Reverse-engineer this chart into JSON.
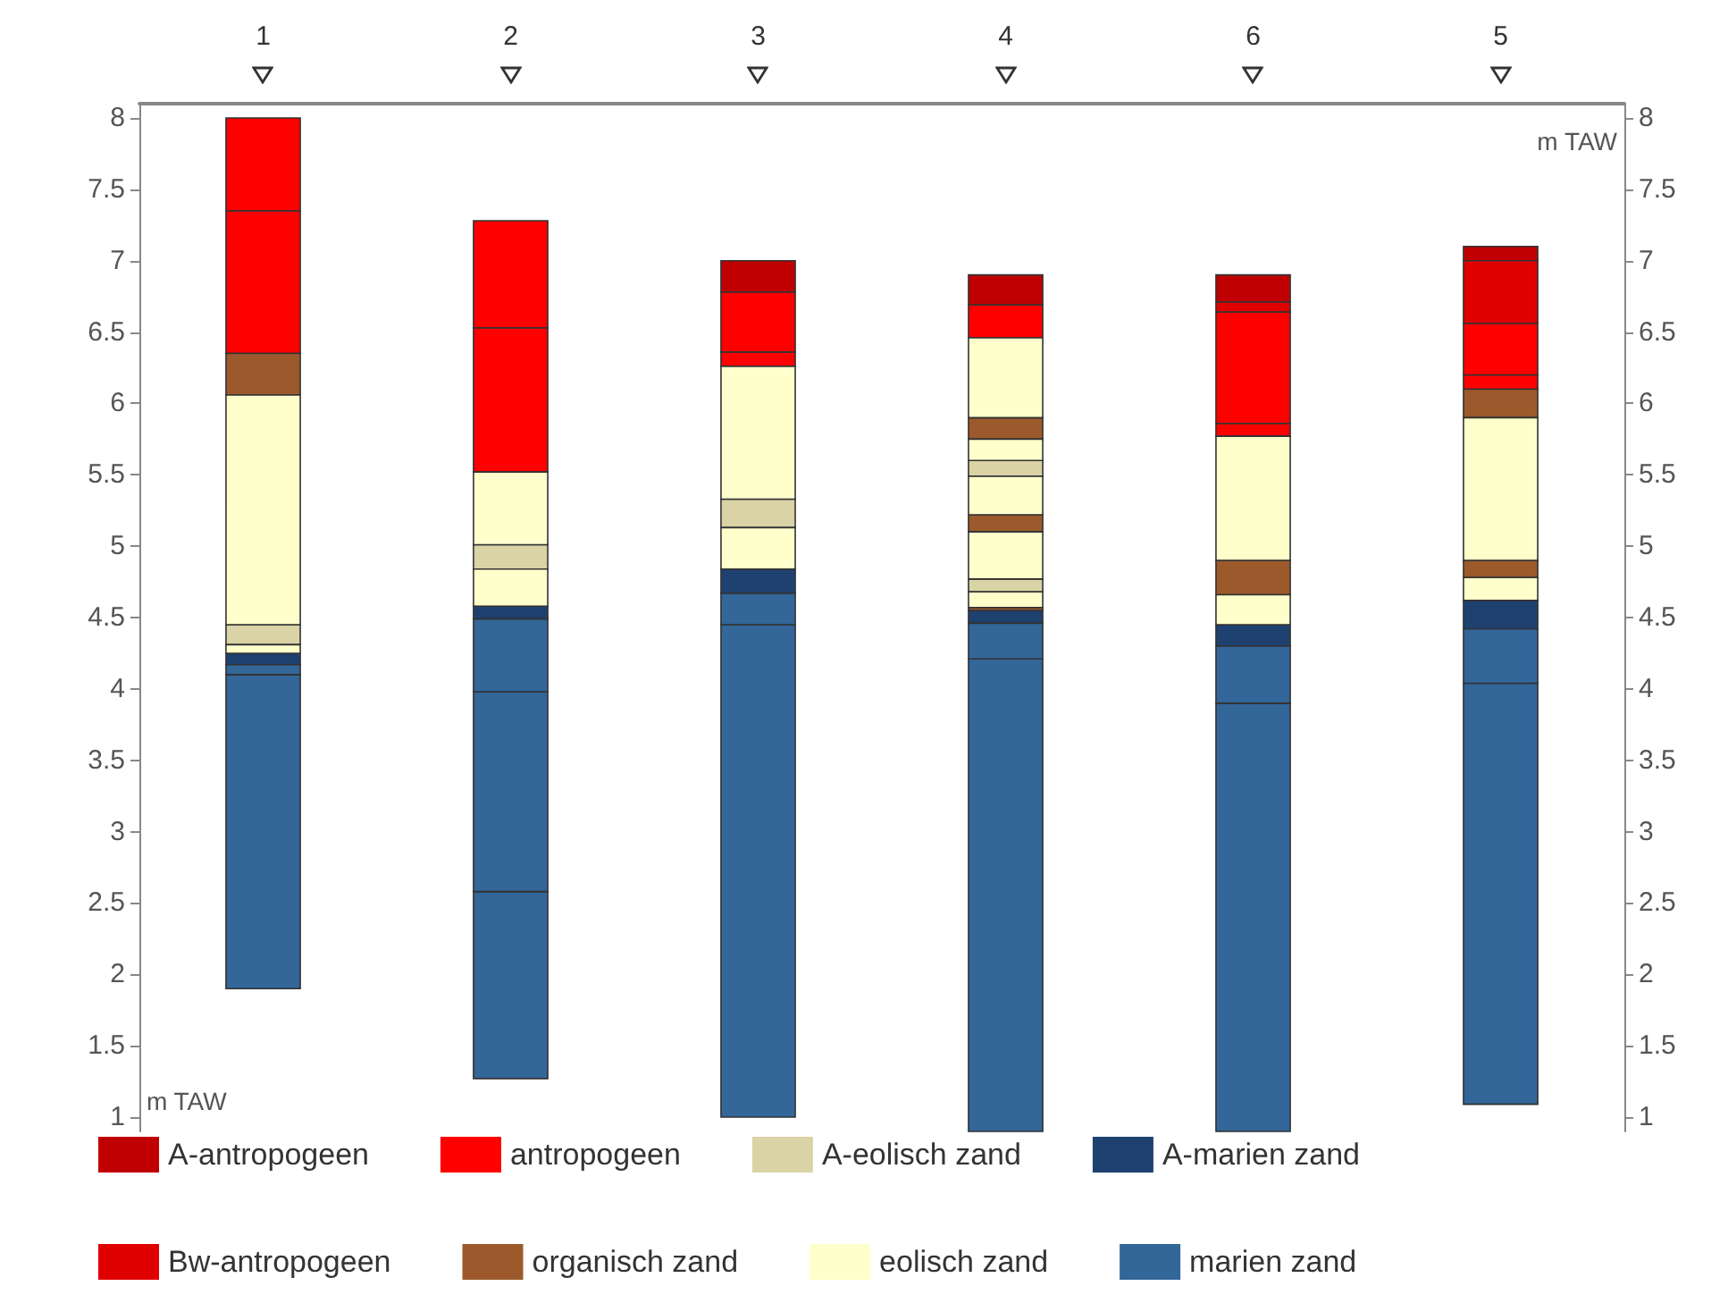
{
  "chart_data": {
    "type": "bar",
    "categories": [
      "1",
      "2",
      "3",
      "4",
      "6",
      "5"
    ],
    "series": [
      {
        "name": "A-antropogeen",
        "color": "#c00000",
        "base": [
          null,
          null,
          6.78,
          6.69,
          6.71,
          7.0
        ],
        "values": [
          null,
          null,
          0.22,
          0.21,
          0.19,
          0.1
        ]
      },
      {
        "name": "antropogeen",
        "color": "#ff0000",
        "base": [
          6.35,
          5.52,
          6.26,
          6.46,
          5.77,
          6.1
        ],
        "values": [
          1.0,
          1.01,
          0.1,
          0.23,
          0.09,
          0.1
        ]
      },
      {
        "name": "A-eolisch zand",
        "color": "#d9d3a6",
        "base": [
          4.31,
          4.84,
          5.13,
          4.68,
          null,
          null
        ],
        "values": [
          0.14,
          0.17,
          0.2,
          0.09,
          null,
          null
        ]
      },
      {
        "name": "A-marien zand",
        "color": "#1f4170",
        "base": [
          4.17,
          4.49,
          4.67,
          4.46,
          4.3,
          4.42
        ],
        "values": [
          0.08,
          0.09,
          0.17,
          0.09,
          0.15,
          0.2
        ]
      },
      {
        "name": "Bw-antropogeen",
        "color": "#e00000",
        "base": [
          null,
          null,
          null,
          null,
          6.64,
          6.56
        ],
        "values": [
          null,
          null,
          null,
          null,
          0.07,
          0.44
        ]
      },
      {
        "name": "organisch zand",
        "color": "#9c5a2c",
        "base": [
          6.06,
          null,
          null,
          4.55,
          4.66,
          4.78
        ],
        "values": [
          0.29,
          null,
          null,
          0.02,
          0.24,
          0.12
        ]
      },
      {
        "name": "eolisch zand",
        "color": "#ffffcc",
        "base": [
          4.25,
          4.58,
          4.84,
          4.57,
          4.45,
          4.62
        ],
        "values": [
          0.06,
          0.26,
          0.29,
          0.11,
          0.21,
          0.16
        ]
      },
      {
        "name": "marien zand",
        "color": "#336699",
        "base": [
          1.9,
          1.27,
          1.0,
          0.9,
          0.9,
          1.09
        ],
        "values": [
          2.2,
          1.31,
          3.45,
          3.31,
          3.0,
          2.95
        ]
      },
      {
        "color": "#ff0000",
        "base": [
          7.35,
          6.53,
          6.36,
          null,
          5.86,
          6.2
        ],
        "values": [
          0.65,
          0.75,
          0.42,
          null,
          0.78,
          0.36
        ]
      },
      {
        "color": "#d9d3a6",
        "base": [
          null,
          null,
          null,
          5.49,
          null,
          null
        ],
        "values": [
          null,
          null,
          null,
          0.11,
          null,
          null
        ]
      },
      {
        "color": "#9c5a2c",
        "base": [
          null,
          null,
          null,
          5.1,
          null,
          5.9
        ],
        "values": [
          null,
          null,
          null,
          0.12,
          null,
          0.2
        ]
      },
      {
        "color": "#9c5a2c",
        "base": [
          null,
          null,
          null,
          5.75,
          null,
          null
        ],
        "values": [
          null,
          null,
          null,
          0.15,
          null,
          null
        ]
      },
      {
        "color": "#ffffcc",
        "base": [
          4.45,
          5.01,
          5.33,
          4.77,
          4.9,
          4.9
        ],
        "values": [
          1.61,
          0.51,
          0.93,
          0.33,
          0.87,
          1.0
        ]
      },
      {
        "color": "#ffffcc",
        "base": [
          null,
          null,
          null,
          5.22,
          null,
          null
        ],
        "values": [
          null,
          null,
          null,
          0.27,
          null,
          null
        ]
      },
      {
        "color": "#ffffcc",
        "base": [
          null,
          null,
          null,
          5.6,
          null,
          null
        ],
        "values": [
          null,
          null,
          null,
          0.15,
          null,
          null
        ]
      },
      {
        "color": "#ffffcc",
        "base": [
          null,
          null,
          null,
          5.9,
          null,
          null
        ],
        "values": [
          null,
          null,
          null,
          0.56,
          null,
          null
        ]
      },
      {
        "color": "#336699",
        "base": [
          4.1,
          2.58,
          4.45,
          4.21,
          3.9,
          4.04
        ],
        "values": [
          0.07,
          1.4,
          0.22,
          0.25,
          0.4,
          0.38
        ]
      },
      {
        "color": "#336699",
        "base": [
          null,
          3.98,
          null,
          null,
          null,
          null
        ],
        "values": [
          null,
          0.51,
          null,
          null,
          null,
          null
        ]
      }
    ],
    "ylabel": "m TAW",
    "y2label": "m TAW",
    "ylim": [
      0.9,
      8.1
    ],
    "yticks": [
      1,
      1.5,
      2,
      2.5,
      3,
      3.5,
      4,
      4.5,
      5,
      5.5,
      6,
      6.5,
      7,
      7.5,
      8
    ],
    "y2lim": [
      0.9,
      8.1
    ],
    "y2ticks": [
      1,
      1.5,
      2,
      2.5,
      3,
      3.5,
      4,
      4.5,
      5,
      5.5,
      6,
      6.5,
      7,
      7.5,
      8
    ],
    "grid": false,
    "legend": "bottom"
  }
}
